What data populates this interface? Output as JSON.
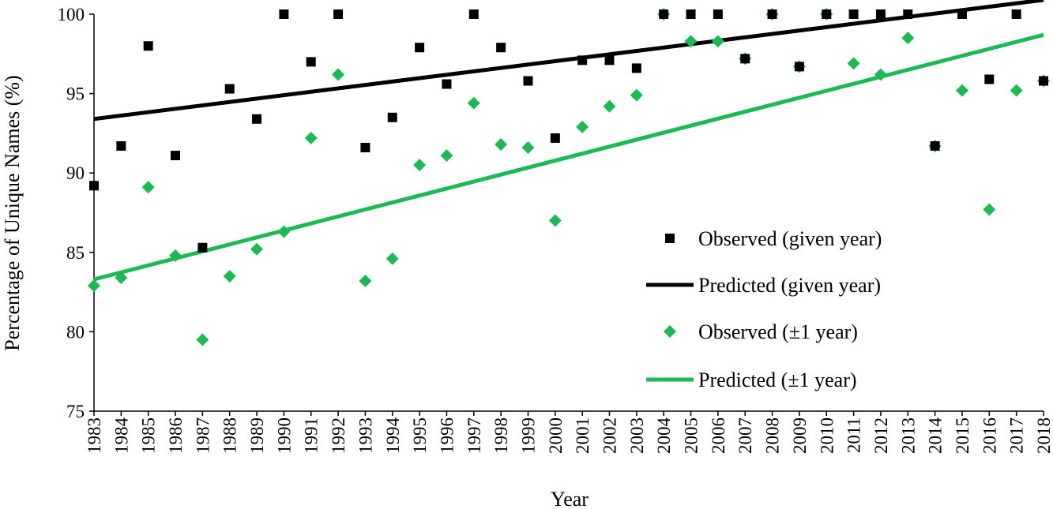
{
  "chart_data": {
    "type": "scatter",
    "title": "",
    "xlabel": "Year",
    "ylabel": "Percentage of Unique Names (%)",
    "xlim": [
      1983,
      2018
    ],
    "ylim": [
      75,
      100
    ],
    "yticks": [
      75,
      80,
      85,
      90,
      95,
      100
    ],
    "categories": [
      "1983",
      "1984",
      "1985",
      "1986",
      "1987",
      "1988",
      "1989",
      "1990",
      "1991",
      "1992",
      "1993",
      "1994",
      "1995",
      "1996",
      "1997",
      "1998",
      "1999",
      "2000",
      "2001",
      "2002",
      "2003",
      "2004",
      "2005",
      "2006",
      "2007",
      "2008",
      "2009",
      "2010",
      "2011",
      "2012",
      "2013",
      "2014",
      "2015",
      "2016",
      "2017",
      "2018"
    ],
    "legend_position": "right",
    "series": [
      {
        "name": "Observed (given year)",
        "kind": "marker",
        "marker": "square",
        "color": "#000000",
        "values": [
          89.2,
          91.7,
          98.0,
          91.1,
          85.3,
          95.3,
          93.4,
          100,
          97.0,
          100,
          91.6,
          93.5,
          97.9,
          95.6,
          100,
          97.9,
          95.8,
          92.2,
          97.1,
          97.1,
          96.6,
          100,
          100,
          100,
          97.2,
          100,
          96.7,
          100,
          100,
          100,
          100,
          91.7,
          100,
          95.9,
          100,
          95.8
        ]
      },
      {
        "name": "Predicted (given year)",
        "kind": "line",
        "color": "#000000",
        "endpoints": [
          93.4,
          100.9
        ]
      },
      {
        "name": "Observed (±1 year)",
        "kind": "marker",
        "marker": "diamond",
        "color": "#1db954",
        "values": [
          82.9,
          83.4,
          89.1,
          84.8,
          79.5,
          83.5,
          85.2,
          86.3,
          92.2,
          96.2,
          83.2,
          84.6,
          90.5,
          91.1,
          94.4,
          91.8,
          91.6,
          87.0,
          92.9,
          94.2,
          94.9,
          100,
          98.3,
          98.3,
          97.2,
          100,
          96.7,
          100,
          96.9,
          96.2,
          98.5,
          91.7,
          95.2,
          87.7,
          95.2,
          95.8
        ]
      },
      {
        "name": "Predicted (±1 year)",
        "kind": "line",
        "color": "#1db954",
        "endpoints": [
          83.3,
          98.7
        ]
      }
    ]
  }
}
